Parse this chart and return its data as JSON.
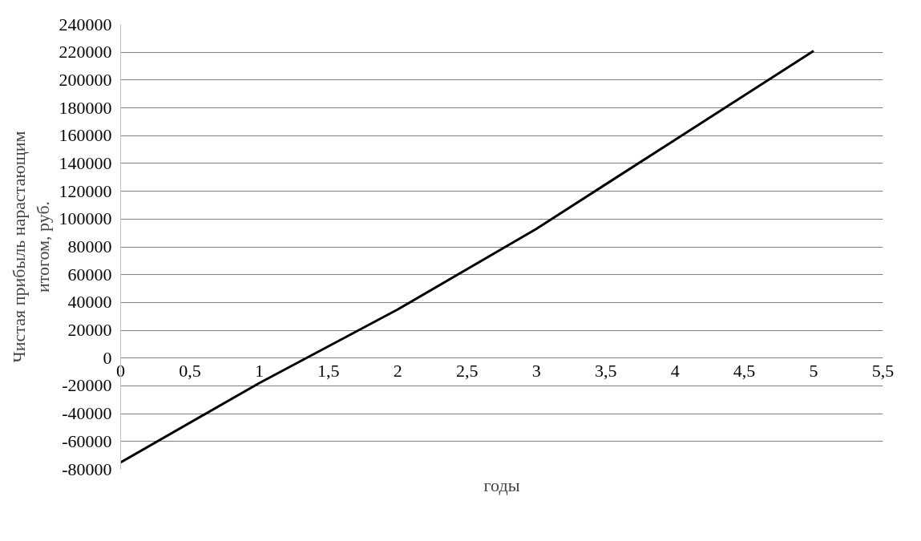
{
  "chart_data": {
    "type": "line",
    "xlabel": "годы",
    "ylabel": "Чистая прибыль нарастающим\nитогом, руб.",
    "x": [
      0,
      1,
      2,
      3,
      4,
      5
    ],
    "series": [
      {
        "color": "#000000",
        "values": [
          -75000,
          -18000,
          35000,
          93000,
          157000,
          221000
        ]
      }
    ],
    "xlim": [
      0,
      5.5
    ],
    "xticks": [
      0,
      {
        "value": 0.5,
        "label": "0,5"
      },
      1,
      {
        "value": 1.5,
        "label": "1,5"
      },
      2,
      {
        "value": 2.5,
        "label": "2,5"
      },
      3,
      {
        "value": 3.5,
        "label": "3,5"
      },
      4,
      {
        "value": 4.5,
        "label": "4,5"
      },
      5,
      {
        "value": 5.5,
        "label": "5,5"
      }
    ],
    "ylim": [
      -80000,
      240000
    ],
    "yticks": [
      -80000,
      -60000,
      -40000,
      -20000,
      0,
      20000,
      40000,
      60000,
      80000,
      100000,
      120000,
      140000,
      160000,
      180000,
      200000,
      220000,
      240000
    ],
    "grid": "y",
    "marker": "none",
    "line_style": "solid"
  }
}
